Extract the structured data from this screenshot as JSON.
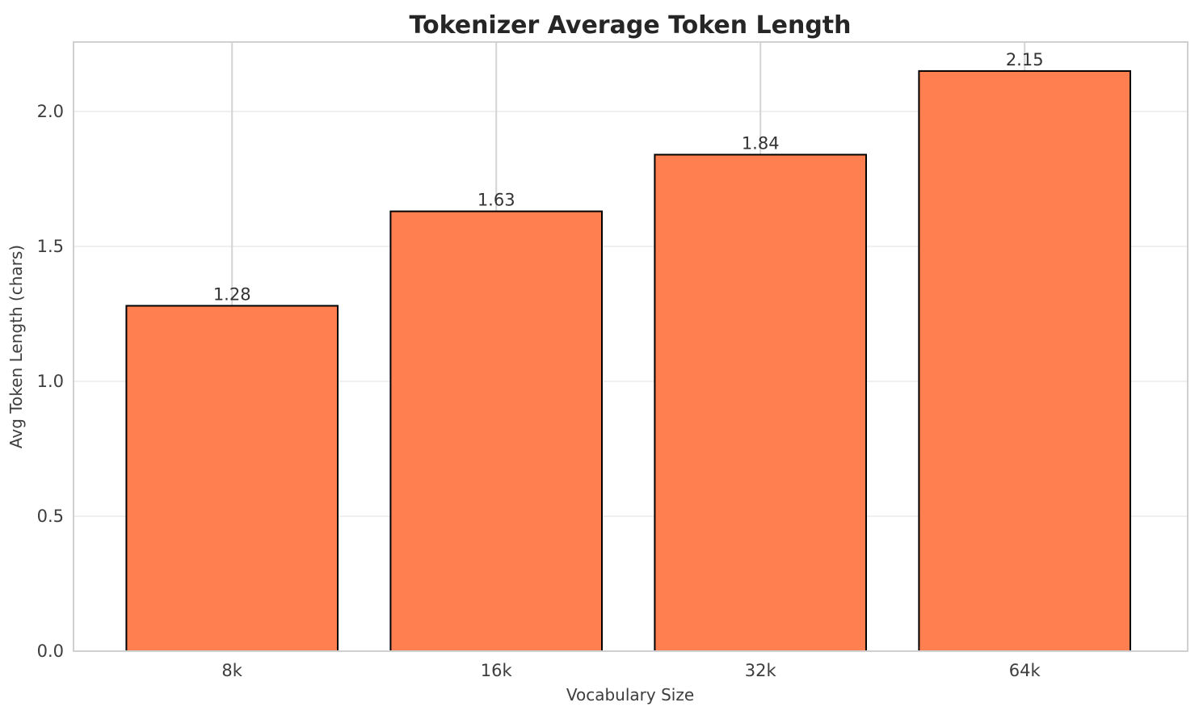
{
  "figure": {
    "background_color": "#ffffff"
  },
  "chart_data": {
    "type": "bar",
    "title": "Tokenizer Average Token Length",
    "xlabel": "Vocabulary Size",
    "ylabel": "Avg Token Length (chars)",
    "categories": [
      "8k",
      "16k",
      "32k",
      "64k"
    ],
    "values": [
      1.28,
      1.63,
      1.84,
      2.15
    ],
    "value_labels": [
      "1.28",
      "1.63",
      "1.84",
      "2.15"
    ],
    "ylim": [
      0,
      2.2575
    ],
    "yticks": [
      0.0,
      0.5,
      1.0,
      1.5,
      2.0
    ],
    "ytick_labels": [
      "0.0",
      "0.5",
      "1.0",
      "1.5",
      "2.0"
    ],
    "grid": "both",
    "legend_position": "none",
    "bar_color": "#FF7F50",
    "bar_edge_color": "#000000"
  }
}
